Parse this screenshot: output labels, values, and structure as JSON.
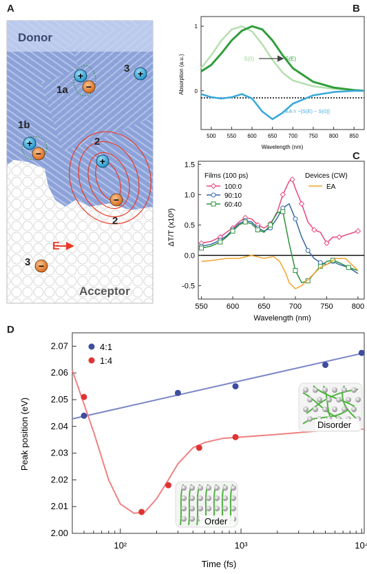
{
  "panels": {
    "a": "A",
    "b": "B",
    "c": "C",
    "d": "D"
  },
  "panel_a": {
    "donor_label": "Donor",
    "acceptor_label": "Acceptor",
    "species": [
      {
        "tag": "1a",
        "kind": "exciton"
      },
      {
        "tag": "1b",
        "kind": "exciton"
      },
      {
        "tag": "2",
        "kind": "hole"
      },
      {
        "tag": "2",
        "kind": "electron"
      },
      {
        "tag": "3",
        "kind": "hole"
      },
      {
        "tag": "3",
        "kind": "electron"
      }
    ],
    "plus_glyph": "+",
    "minus_glyph": "−",
    "field_label": "E",
    "colors": {
      "donor": "#8ca2d8",
      "acceptor": "#ffffff",
      "hole": "#41b6e6",
      "electron": "#ef8b3a",
      "field": "#e83a25"
    }
  },
  "chart_data": [
    {
      "id": "B",
      "type": "line",
      "ylabel": "Absorption (a.u.)",
      "xlabel": "Wavelength (nm)",
      "xlim": [
        475,
        875
      ],
      "ylim": [
        -0.6,
        1.15
      ],
      "xticks": [
        500,
        550,
        600,
        650,
        700,
        750,
        800,
        850
      ],
      "yticks": [
        0,
        1
      ],
      "series": [
        {
          "name": "S(0)",
          "color": "#b7dfb0",
          "x": [
            475,
            500,
            525,
            550,
            575,
            600,
            625,
            650,
            675,
            700,
            750,
            800,
            850,
            875
          ],
          "y": [
            0.35,
            0.55,
            0.78,
            0.95,
            1.0,
            0.92,
            0.72,
            0.48,
            0.28,
            0.16,
            0.07,
            0.03,
            0.01,
            0.0
          ]
        },
        {
          "name": "S(E)",
          "color": "#2f9e3a",
          "x": [
            475,
            500,
            525,
            550,
            575,
            600,
            625,
            650,
            675,
            700,
            750,
            800,
            850,
            875
          ],
          "y": [
            0.3,
            0.4,
            0.58,
            0.78,
            0.93,
            1.0,
            0.95,
            0.78,
            0.55,
            0.35,
            0.14,
            0.05,
            0.01,
            0.0
          ]
        },
        {
          "name": "−EA = −[S(E) − S(0)]",
          "color": "#3ba9dc",
          "x": [
            475,
            500,
            525,
            550,
            575,
            600,
            625,
            650,
            675,
            700,
            750,
            800,
            850,
            875
          ],
          "y": [
            -0.05,
            -0.1,
            -0.12,
            -0.1,
            -0.05,
            -0.12,
            -0.32,
            -0.44,
            -0.34,
            -0.2,
            -0.07,
            -0.02,
            0.0,
            0.0
          ]
        }
      ],
      "arrow_from": "S(0)",
      "arrow_to": "S(E)"
    },
    {
      "id": "C",
      "type": "line",
      "ylabel": "ΔT/T (x10³)",
      "xlabel": "Wavelength (nm)",
      "xlim": [
        545,
        810
      ],
      "ylim": [
        -0.72,
        1.55
      ],
      "xticks": [
        550,
        600,
        650,
        700,
        750,
        800
      ],
      "yticks": [
        -0.5,
        0.0,
        0.5,
        1.0,
        1.5
      ],
      "ytick_labels": [
        "-0.5",
        "0.0",
        "0.5",
        "1.0",
        "1.5"
      ],
      "legend_left_title": "Films (100 ps)",
      "legend_right_title": "Devices (CW)",
      "series": [
        {
          "name": "100:0",
          "color": "#e8457f",
          "marker": "diamond",
          "x": [
            550,
            565,
            580,
            590,
            600,
            610,
            620,
            630,
            640,
            650,
            660,
            670,
            680,
            690,
            695,
            700,
            710,
            720,
            730,
            740,
            750,
            760,
            770,
            785,
            800
          ],
          "y": [
            0.2,
            0.23,
            0.3,
            0.38,
            0.45,
            0.55,
            0.62,
            0.6,
            0.5,
            0.45,
            0.52,
            0.68,
            1.0,
            1.22,
            1.25,
            1.1,
            0.85,
            0.55,
            0.42,
            0.38,
            0.2,
            0.3,
            0.3,
            0.35,
            0.4
          ]
        },
        {
          "name": "90:10",
          "color": "#3566a8",
          "marker": "circle",
          "x": [
            550,
            565,
            580,
            590,
            600,
            610,
            620,
            630,
            640,
            650,
            660,
            670,
            680,
            690,
            700,
            710,
            720,
            730,
            740,
            750,
            760,
            770,
            785,
            800
          ],
          "y": [
            0.15,
            0.18,
            0.25,
            0.32,
            0.42,
            0.52,
            0.57,
            0.55,
            0.45,
            0.4,
            0.45,
            0.6,
            0.78,
            0.85,
            0.6,
            0.3,
            0.08,
            -0.05,
            -0.12,
            -0.15,
            -0.1,
            -0.15,
            -0.2,
            -0.3
          ]
        },
        {
          "name": "60:40",
          "color": "#2c8f3a",
          "marker": "square",
          "x": [
            550,
            565,
            580,
            590,
            600,
            610,
            620,
            630,
            640,
            650,
            660,
            670,
            680,
            690,
            700,
            710,
            720,
            730,
            740,
            750,
            760,
            770,
            785,
            800
          ],
          "y": [
            0.12,
            0.15,
            0.22,
            0.3,
            0.4,
            0.5,
            0.55,
            0.52,
            0.42,
            0.38,
            0.5,
            0.7,
            0.72,
            0.2,
            -0.25,
            -0.45,
            -0.42,
            -0.3,
            -0.18,
            -0.1,
            -0.08,
            -0.12,
            -0.2,
            -0.25
          ]
        },
        {
          "name": "EA",
          "color": "#f0a32d",
          "marker": "none",
          "x": [
            550,
            570,
            590,
            610,
            630,
            650,
            665,
            675,
            685,
            690,
            700,
            710,
            720,
            730,
            740,
            750,
            765,
            780,
            790,
            800
          ],
          "y": [
            -0.1,
            -0.08,
            -0.05,
            -0.05,
            0.0,
            -0.05,
            -0.02,
            -0.1,
            -0.3,
            -0.45,
            -0.55,
            -0.5,
            -0.4,
            -0.3,
            -0.2,
            -0.15,
            -0.05,
            -0.05,
            -0.15,
            -0.25
          ]
        }
      ]
    },
    {
      "id": "D",
      "type": "scatter",
      "xlabel": "Time (fs)",
      "ylabel": "Peak position (eV)",
      "xscale": "log",
      "xlim": [
        40,
        10500
      ],
      "ylim": [
        2.0,
        2.075
      ],
      "xticks": [
        100,
        1000,
        10000
      ],
      "xtick_labels": [
        "10²",
        "10³",
        "10⁴"
      ],
      "yticks": [
        2.0,
        2.01,
        2.02,
        2.03,
        2.04,
        2.05,
        2.06,
        2.07
      ],
      "ytick_labels": [
        "2.00",
        "2.01",
        "2.02",
        "2.03",
        "2.04",
        "2.05",
        "2.06",
        "2.07"
      ],
      "series": [
        {
          "name": "4:1",
          "color": "#3e4d9e",
          "fit_color": "#7b86c7",
          "x": [
            50,
            300,
            900,
            5000,
            10000
          ],
          "y": [
            2.044,
            2.0525,
            2.055,
            2.063,
            2.0675
          ],
          "fit_x": [
            40,
            10500
          ],
          "fit_y": [
            2.0428,
            2.0675
          ]
        },
        {
          "name": "1:4",
          "color": "#e03333",
          "fit_color": "#f08080",
          "x": [
            50,
            150,
            250,
            450,
            900
          ],
          "y": [
            2.051,
            2.008,
            2.018,
            2.032,
            2.036
          ],
          "fit_x": [
            40,
            60,
            80,
            100,
            130,
            160,
            200,
            250,
            300,
            400,
            500,
            700,
            1000,
            2000,
            5000,
            10500
          ],
          "fit_y": [
            2.061,
            2.038,
            2.02,
            2.011,
            2.0075,
            2.008,
            2.013,
            2.02,
            2.026,
            2.032,
            2.034,
            2.0355,
            2.036,
            2.037,
            2.0385,
            2.039
          ]
        }
      ],
      "insets": [
        {
          "label": "Order"
        },
        {
          "label": "Disorder"
        }
      ],
      "legend_position": "top-left"
    }
  ]
}
